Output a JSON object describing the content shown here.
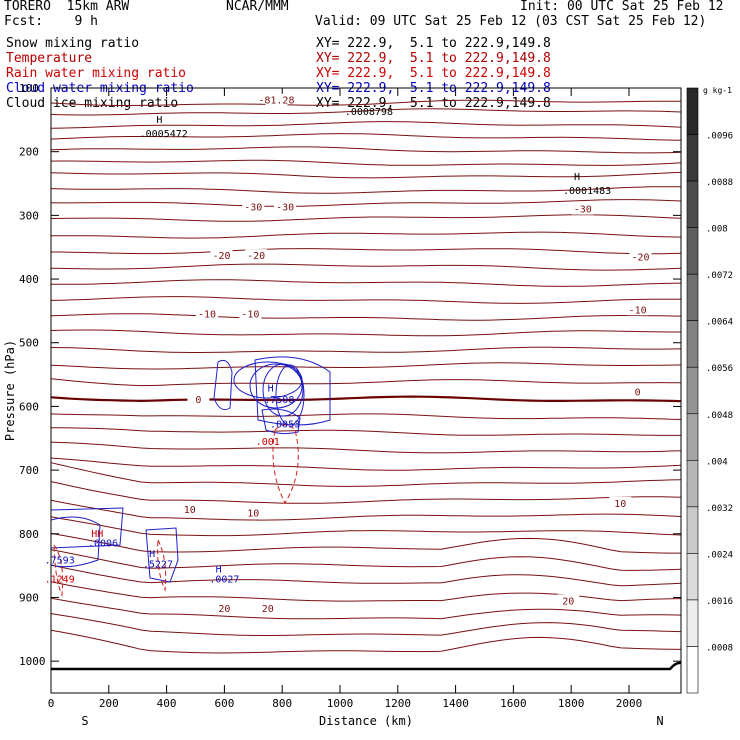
{
  "header": {
    "left_title": "TORERO  15km ARW",
    "center_title": "NCAR/MMM",
    "init": "Init: 00 UTC Sat 25 Feb 12",
    "fcst": "Fcst:    9 h",
    "valid": "Valid: 09 UTC Sat 25 Feb 12 (03 CST Sat 25 Feb 12)"
  },
  "fields": [
    {
      "name": "Snow mixing ratio",
      "xy": "XY= 222.9,  5.1 to 222.9,149.8",
      "color": "#000000"
    },
    {
      "name": "Temperature",
      "xy": "XY= 222.9,  5.1 to 222.9,149.8",
      "color": "#b00000"
    },
    {
      "name": "Rain water mixing ratio",
      "xy": "XY= 222.9,  5.1 to 222.9,149.8",
      "color": "#d00000"
    },
    {
      "name": "Cloud water mixing ratio",
      "xy": "XY= 222.9,  5.1 to 222.9,149.8",
      "color": "#0000c0"
    },
    {
      "name": "Cloud ice mixing ratio",
      "xy": "XY= 222.9,  5.1 to 222.9,149.8",
      "color": "#000000"
    }
  ],
  "chart_data": {
    "type": "contour-cross-section",
    "xlabel": "Distance (km)",
    "ylabel": "Pressure (hPa)",
    "xlim": [
      0,
      2180
    ],
    "ylim": [
      1050,
      100
    ],
    "xticks": [
      0,
      200,
      400,
      600,
      800,
      1000,
      1200,
      1400,
      1600,
      1800,
      2000
    ],
    "yticks": [
      200,
      300,
      400,
      500,
      600,
      700,
      800,
      900,
      1000
    ],
    "yticks_labeled": [
      "100",
      "200",
      "300",
      "400",
      "500",
      "600",
      "700",
      "800",
      "900",
      "1000"
    ],
    "endpoints": {
      "left": "S",
      "right": "N"
    },
    "temperature_labels": [
      {
        "text": "-81.28",
        "x": 780,
        "p": 120
      },
      {
        "text": "-30",
        "x": 700,
        "p": 288
      },
      {
        "text": "-30",
        "x": 810,
        "p": 288
      },
      {
        "text": "-30",
        "x": 1840,
        "p": 291
      },
      {
        "text": "-20",
        "x": 590,
        "p": 364
      },
      {
        "text": "-20",
        "x": 710,
        "p": 364
      },
      {
        "text": "-20",
        "x": 2040,
        "p": 366
      },
      {
        "text": "-10",
        "x": 540,
        "p": 456
      },
      {
        "text": "-10",
        "x": 690,
        "p": 456
      },
      {
        "text": "-10",
        "x": 2030,
        "p": 449
      },
      {
        "text": "0",
        "x": 510,
        "p": 590
      },
      {
        "text": "0",
        "x": 2030,
        "p": 578
      },
      {
        "text": "10",
        "x": 480,
        "p": 763
      },
      {
        "text": "10",
        "x": 700,
        "p": 768
      },
      {
        "text": "10",
        "x": 1970,
        "p": 753
      },
      {
        "text": "20",
        "x": 600,
        "p": 918
      },
      {
        "text": "20",
        "x": 750,
        "p": 918
      },
      {
        "text": "20",
        "x": 1790,
        "p": 906
      }
    ],
    "maxima": [
      {
        "text": "H",
        "x": 375,
        "p": 150,
        "color": "#000000"
      },
      {
        "text": ".0005472",
        "x": 390,
        "p": 172,
        "color": "#000000"
      },
      {
        "text": "H",
        "x": 1820,
        "p": 240,
        "color": "#000000"
      },
      {
        "text": ".0001483",
        "x": 1855,
        "p": 262,
        "color": "#000000"
      },
      {
        "text": ".0008798",
        "x": 1100,
        "p": 138,
        "color": "#000000"
      },
      {
        "text": "H",
        "x": 760,
        "p": 572,
        "color": "#1010c0"
      },
      {
        "text": ".7508",
        "x": 790,
        "p": 590,
        "color": "#1010c0"
      },
      {
        "text": ".001",
        "x": 750,
        "p": 656,
        "color": "#d00000"
      },
      {
        "text": ".0053",
        "x": 810,
        "p": 628,
        "color": "#1010c0"
      },
      {
        "text": "HH",
        "x": 160,
        "p": 800,
        "color": "#d00000"
      },
      {
        "text": ".0006",
        "x": 180,
        "p": 815,
        "color": "#1010c0"
      },
      {
        "text": ".7593",
        "x": 30,
        "p": 842,
        "color": "#1010c0"
      },
      {
        "text": ".1249",
        "x": 30,
        "p": 872,
        "color": "#d00000"
      },
      {
        "text": "H",
        "x": 350,
        "p": 832,
        "color": "#1010c0"
      },
      {
        "text": ".5227",
        "x": 370,
        "p": 848,
        "color": "#1010c0"
      },
      {
        "text": "H",
        "x": 580,
        "p": 856,
        "color": "#1010c0"
      },
      {
        "text": ".0027",
        "x": 600,
        "p": 872,
        "color": "#1010c0"
      }
    ],
    "colorbar": {
      "unit": "g kg-1",
      "labels": [
        ".0096",
        ".0088",
        ".008",
        ".0072",
        ".0064",
        ".0056",
        ".0048",
        ".004",
        ".0032",
        ".0024",
        ".0016",
        ".0008"
      ]
    }
  }
}
